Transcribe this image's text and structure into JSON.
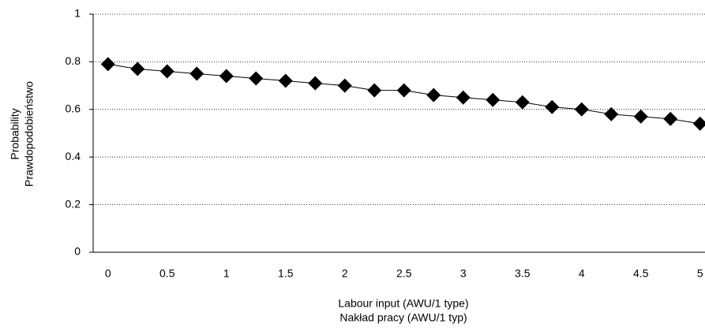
{
  "chart_data": {
    "type": "line",
    "x_label": [
      "Labour input (AWU/1 type)",
      "Nakład pracy (AWU/1 typ)"
    ],
    "y_label": [
      "Probability",
      "Prawdopodobieństwo"
    ],
    "categories": [
      "0",
      null,
      "0.5",
      null,
      "1",
      null,
      "1.5",
      null,
      "2",
      null,
      "2.5",
      null,
      "3",
      null,
      "3.5",
      null,
      "4",
      null,
      "4.5",
      null,
      "5"
    ],
    "values": [
      0.79,
      0.77,
      0.76,
      0.75,
      0.74,
      0.73,
      0.72,
      0.71,
      0.7,
      0.68,
      0.68,
      0.66,
      0.65,
      0.64,
      0.63,
      0.61,
      0.6,
      0.58,
      0.57,
      0.56,
      0.54
    ],
    "color": "#000000",
    "ylim": [
      0,
      1
    ],
    "yticks": [
      0,
      0.2,
      0.4,
      0.6,
      0.8,
      1
    ],
    "grid": true
  }
}
